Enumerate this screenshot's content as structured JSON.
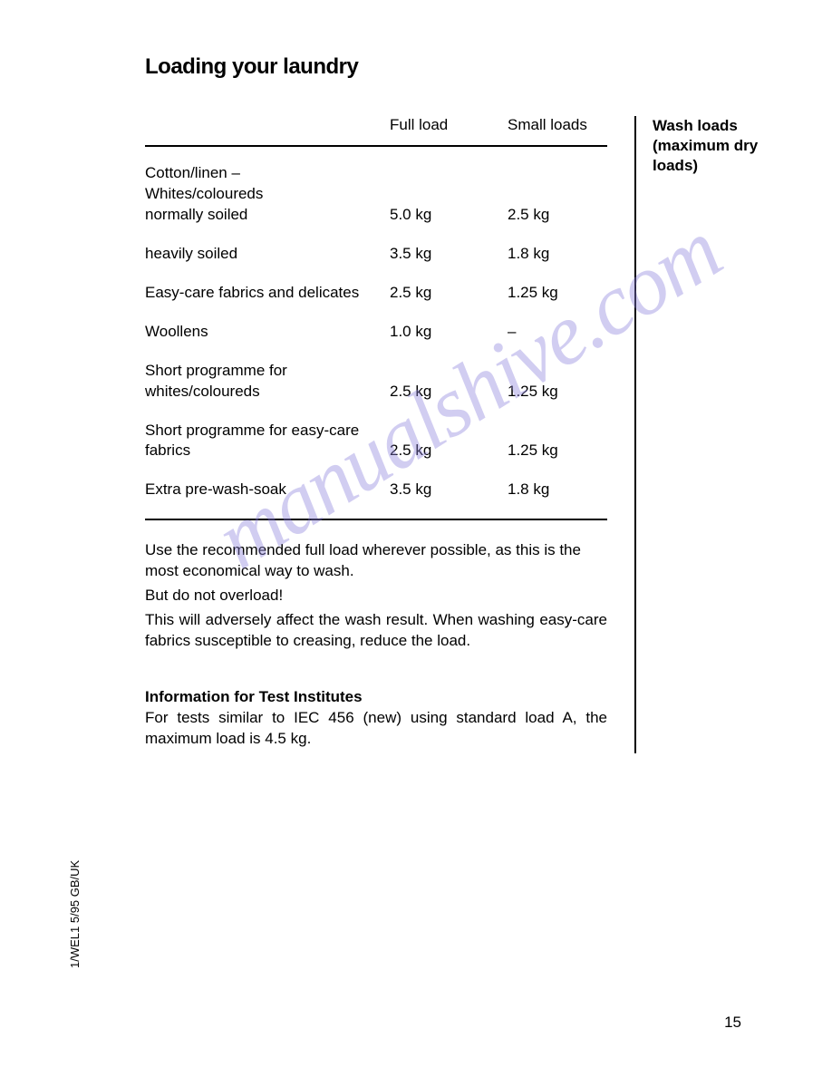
{
  "title": "Loading your laundry",
  "sideHeading": "Wash loads (maximum dry loads)",
  "table": {
    "headers": {
      "full": "Full load",
      "small": "Small loads"
    },
    "rows": [
      {
        "label": "Cotton/linen –\nWhites/coloureds\nnormally soiled",
        "full": "5.0 kg",
        "small": "2.5 kg",
        "multiline": true
      },
      {
        "label": "heavily soiled",
        "full": "3.5 kg",
        "small": "1.8 kg"
      },
      {
        "label": "Easy-care fabrics and delicates",
        "full": "2.5 kg",
        "small": "1.25 kg",
        "multiline": true
      },
      {
        "label": "Woollens",
        "full": "1.0 kg",
        "small": "–"
      },
      {
        "label": "Short programme for whites/coloureds",
        "full": "2.5 kg",
        "small": "1.25 kg",
        "multiline": true
      },
      {
        "label": "Short programme for easy-care fabrics",
        "full": "2.5 kg",
        "small": "1.25 kg",
        "multiline": true
      },
      {
        "label": "Extra pre-wash-soak",
        "full": "3.5 kg",
        "small": "1.8 kg"
      }
    ]
  },
  "paragraphs": {
    "p1": "Use the recommended full load wherever possible, as this is the most economical way to wash.",
    "p2": "But do not overload!",
    "p3": "This will adversely affect the wash result. When washing easy-care fabrics susceptible to creasing, reduce the load."
  },
  "testSection": {
    "heading": "Information for Test Institutes",
    "text": "For tests similar to IEC 456 (new) using standard load A, the maximum load is 4.5 kg."
  },
  "pageNumber": "15",
  "docRef": "1/WEL1 5/95   GB/UK",
  "watermark": "manualshive.com"
}
